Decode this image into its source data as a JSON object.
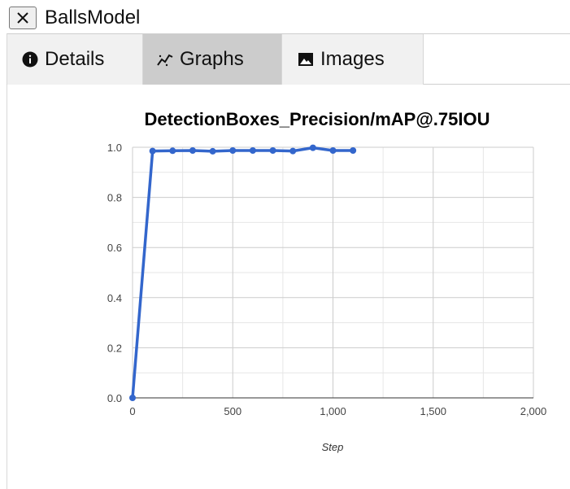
{
  "window": {
    "title": "BallsModel",
    "close_icon": "close-icon"
  },
  "tabs": [
    {
      "label": "Details",
      "icon": "info-icon",
      "active": false
    },
    {
      "label": "Graphs",
      "icon": "chart-line-icon",
      "active": true
    },
    {
      "label": "Images",
      "icon": "image-icon",
      "active": false
    }
  ],
  "colors": {
    "series": "#3366cc",
    "active_tab": "#cccccc",
    "inactive_tab": "#f1f1f1",
    "grid": "#cccccc"
  },
  "chart_data": {
    "type": "line",
    "title": "DetectionBoxes_Precision/mAP@.75IOU",
    "xlabel": "Step",
    "ylabel": "",
    "xlim": [
      0,
      2000
    ],
    "ylim": [
      0,
      1.0
    ],
    "x_ticks": [
      "0",
      "500",
      "1,000",
      "1,500",
      "2,000"
    ],
    "y_ticks": [
      "0.0",
      "0.2",
      "0.4",
      "0.6",
      "0.8",
      "1.0"
    ],
    "grid": true,
    "legend": "none",
    "series": [
      {
        "x": [
          0,
          100,
          200,
          300,
          400,
          500,
          600,
          700,
          800,
          900,
          1000,
          1100
        ],
        "y": [
          0.0,
          0.985,
          0.986,
          0.987,
          0.984,
          0.987,
          0.987,
          0.987,
          0.985,
          0.998,
          0.987,
          0.987
        ]
      }
    ]
  }
}
